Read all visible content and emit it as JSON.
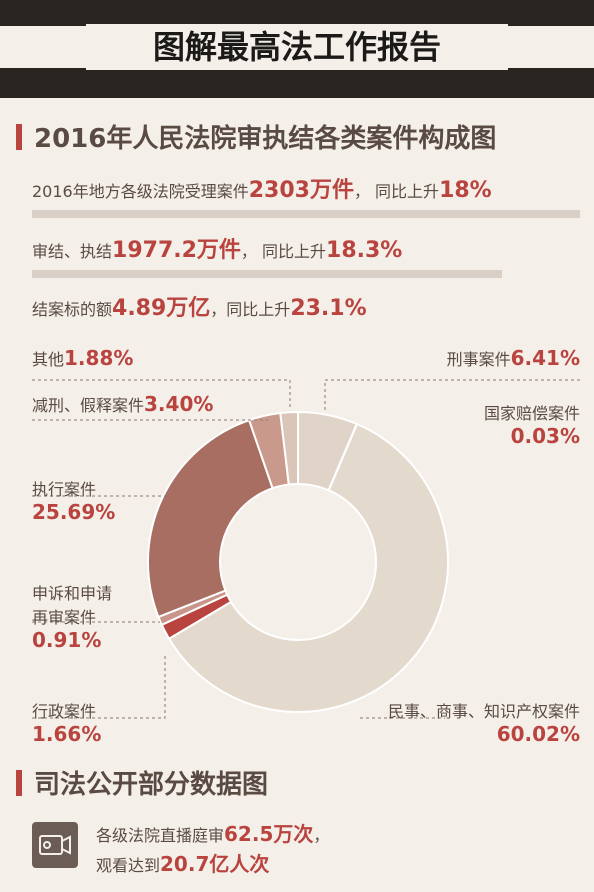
{
  "header": {
    "title": "图解最高法工作报告"
  },
  "section1": {
    "title": "2016年人民法院审执结各类案件构成图",
    "stats": [
      {
        "pre": "2016年地方各级法院受理案件",
        "value": "2303万件",
        "mid": "，  同比上升",
        "value2": "18%"
      },
      {
        "pre": "审结、执结",
        "value": "1977.2万件",
        "mid": "，  同比上升",
        "value2": "18.3%"
      },
      {
        "pre": "结案标的额",
        "value": "4.89万亿",
        "mid": "，同比上升",
        "value2": "23.1%"
      }
    ]
  },
  "chart_data": {
    "type": "pie",
    "title": "2016年人民法院审执结各类案件构成图",
    "slices": [
      {
        "label": "刑事案件",
        "value": 6.41,
        "display": "6.41%",
        "color": "#e0d4c8"
      },
      {
        "label": "国家赔偿案件",
        "value": 0.03,
        "display": "0.03%",
        "color": "#e4d9cd"
      },
      {
        "label": "民事、商事、知识产权案件",
        "value": 60.02,
        "display": "60.02%",
        "color": "#e4d9cd"
      },
      {
        "label": "行政案件",
        "value": 1.66,
        "display": "1.66%",
        "color": "#b9433e"
      },
      {
        "label": "申诉和申请再审案件",
        "value": 0.91,
        "display": "0.91%",
        "color": "#c9958a"
      },
      {
        "label": "执行案件",
        "value": 25.69,
        "display": "25.69%",
        "color": "#a86e62"
      },
      {
        "label": "减刑、假释案件",
        "value": 3.4,
        "display": "3.40%",
        "color": "#c9998b"
      },
      {
        "label": "其他",
        "value": 1.88,
        "display": "1.88%",
        "color": "#d9c6b8"
      }
    ]
  },
  "labels": {
    "other": {
      "name": "其他",
      "val": "1.88%"
    },
    "criminal": {
      "name": "刑事案件",
      "val": "6.41%"
    },
    "parole": {
      "name": "减刑、假释案件",
      "val": "3.40%"
    },
    "state_comp": {
      "name": "国家赔偿案件",
      "val": "0.03%"
    },
    "enforcement": {
      "name": "执行案件",
      "val": "25.69%"
    },
    "petition": {
      "name1": "申诉和申请",
      "name2": "再审案件",
      "val": "0.91%"
    },
    "admin": {
      "name": "行政案件",
      "val": "1.66%"
    },
    "civil": {
      "name": "民事、商事、知识产权案件",
      "val": "60.02%"
    }
  },
  "section2": {
    "title": "司法公开部分数据图",
    "line1_pre": "各级法院直播庭审",
    "line1_value": "62.5万次",
    "line1_post": "，",
    "line2_pre": "观看达到",
    "line2_value": "20.7亿人次"
  }
}
